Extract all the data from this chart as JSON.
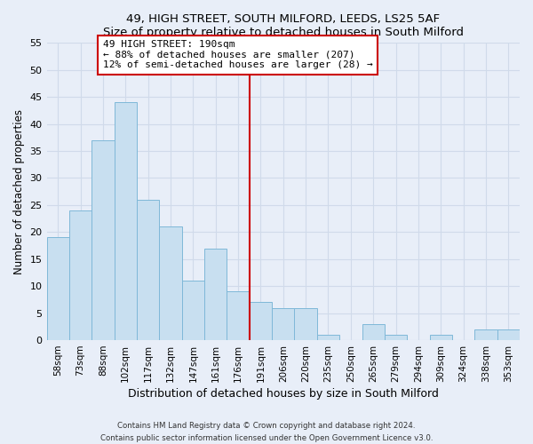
{
  "title": "49, HIGH STREET, SOUTH MILFORD, LEEDS, LS25 5AF",
  "subtitle": "Size of property relative to detached houses in South Milford",
  "xlabel": "Distribution of detached houses by size in South Milford",
  "ylabel": "Number of detached properties",
  "bar_labels": [
    "58sqm",
    "73sqm",
    "88sqm",
    "102sqm",
    "117sqm",
    "132sqm",
    "147sqm",
    "161sqm",
    "176sqm",
    "191sqm",
    "206sqm",
    "220sqm",
    "235sqm",
    "250sqm",
    "265sqm",
    "279sqm",
    "294sqm",
    "309sqm",
    "324sqm",
    "338sqm",
    "353sqm"
  ],
  "bar_heights": [
    19,
    24,
    37,
    44,
    26,
    21,
    11,
    17,
    9,
    7,
    6,
    6,
    1,
    0,
    3,
    1,
    0,
    1,
    0,
    2,
    2
  ],
  "bar_color": "#c8dff0",
  "bar_edge_color": "#7fb8d8",
  "reference_line_color": "#cc0000",
  "annotation_text": "49 HIGH STREET: 190sqm\n← 88% of detached houses are smaller (207)\n12% of semi-detached houses are larger (28) →",
  "annotation_box_edge_color": "#cc0000",
  "ylim": [
    0,
    55
  ],
  "yticks": [
    0,
    5,
    10,
    15,
    20,
    25,
    30,
    35,
    40,
    45,
    50,
    55
  ],
  "background_color": "#e8eef8",
  "grid_color": "#d0daea",
  "footer_line1": "Contains HM Land Registry data © Crown copyright and database right 2024.",
  "footer_line2": "Contains public sector information licensed under the Open Government Licence v3.0."
}
